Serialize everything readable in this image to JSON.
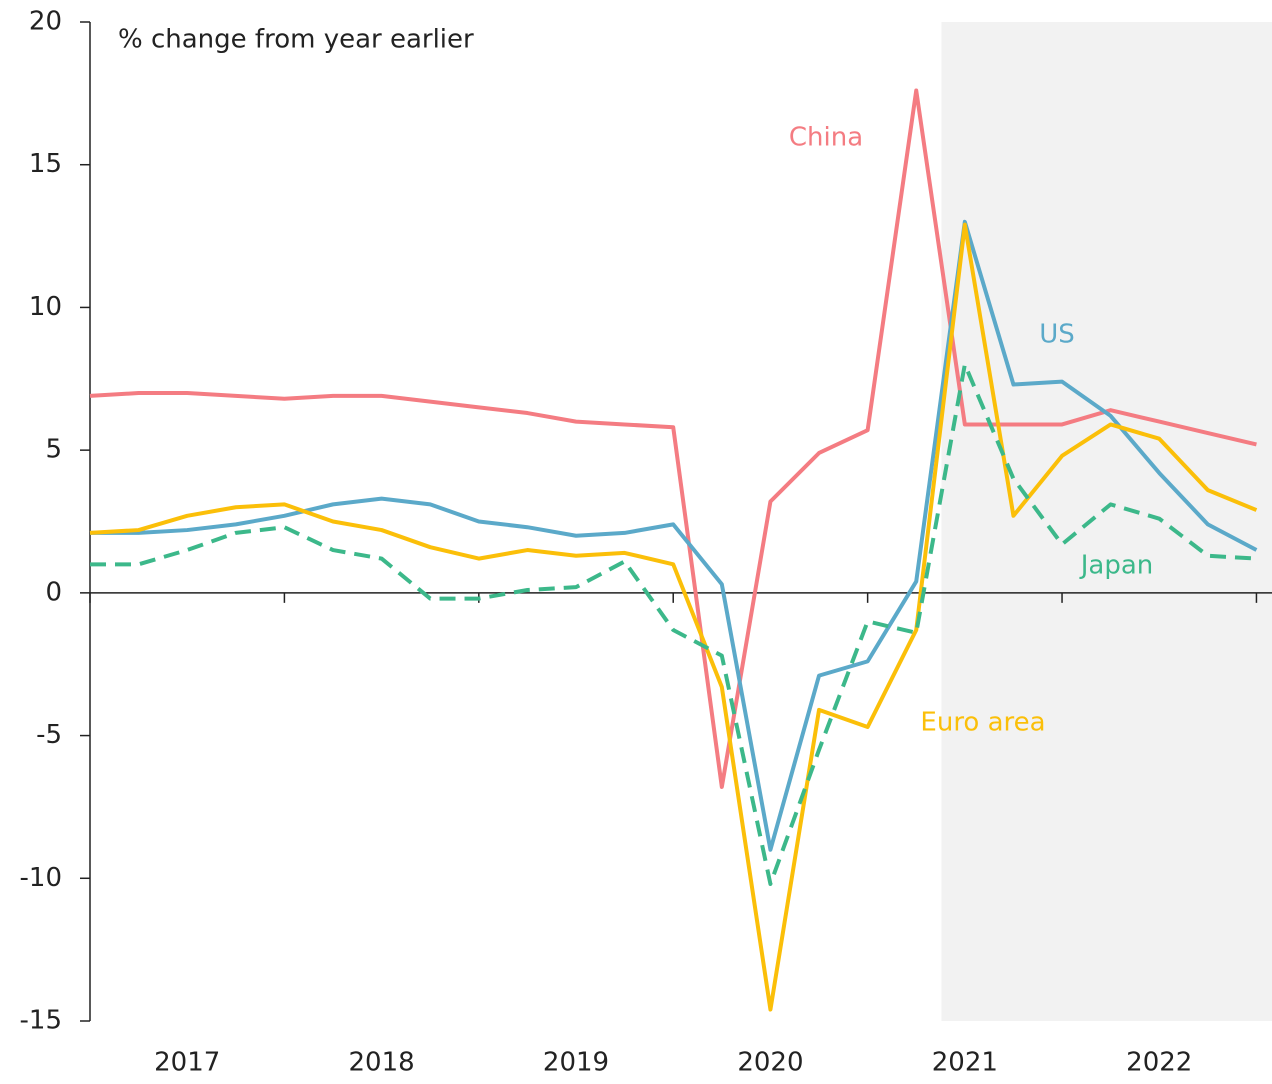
{
  "chart_data": {
    "type": "line",
    "annotation": "% change from year earlier",
    "x": [
      2017,
      2017.25,
      2017.5,
      2017.75,
      2018,
      2018.25,
      2018.5,
      2018.75,
      2019,
      2019.25,
      2019.5,
      2019.75,
      2020,
      2020.25,
      2020.5,
      2020.75,
      2021,
      2021.25,
      2021.5,
      2021.75,
      2022,
      2022.25,
      2022.5,
      2022.75,
      2023
    ],
    "xlim": [
      2017,
      2023.08
    ],
    "xticks": [
      2017,
      2018,
      2019,
      2020,
      2021,
      2022,
      2023
    ],
    "year_labels": [
      {
        "value": 2017.5,
        "label": "2017"
      },
      {
        "value": 2018.5,
        "label": "2018"
      },
      {
        "value": 2019.5,
        "label": "2019"
      },
      {
        "value": 2020.5,
        "label": "2020"
      },
      {
        "value": 2021.5,
        "label": "2021"
      },
      {
        "value": 2022.5,
        "label": "2022"
      }
    ],
    "ylim": [
      -15,
      20
    ],
    "yticks": [
      -15,
      -10,
      -5,
      0,
      5,
      10,
      15,
      20
    ],
    "forecast_shading_start": 2021.38,
    "series": [
      {
        "name": "China",
        "color": "#f47c82",
        "dashed": false,
        "values": [
          6.9,
          7.0,
          7.0,
          6.9,
          6.8,
          6.9,
          6.9,
          6.7,
          6.5,
          6.3,
          6.0,
          5.9,
          5.8,
          -6.8,
          3.2,
          4.9,
          5.7,
          17.6,
          5.9,
          5.9,
          5.9,
          6.4,
          6.0,
          5.6,
          5.2
        ]
      },
      {
        "name": "US",
        "color": "#5ba9c9",
        "dashed": false,
        "values": [
          2.1,
          2.1,
          2.2,
          2.4,
          2.7,
          3.1,
          3.3,
          3.1,
          2.5,
          2.3,
          2.0,
          2.1,
          2.4,
          0.3,
          -9.0,
          -2.9,
          -2.4,
          0.4,
          13.0,
          7.3,
          7.4,
          6.2,
          4.2,
          2.4,
          1.5
        ]
      },
      {
        "name": "Euro area",
        "color": "#fbbf09",
        "dashed": false,
        "values": [
          2.1,
          2.2,
          2.7,
          3.0,
          3.1,
          2.5,
          2.2,
          1.6,
          1.2,
          1.5,
          1.3,
          1.4,
          1.0,
          -3.3,
          -14.6,
          -4.1,
          -4.7,
          -1.3,
          12.9,
          2.7,
          4.8,
          5.9,
          5.4,
          3.6,
          2.9
        ]
      },
      {
        "name": "Japan",
        "color": "#3cb88a",
        "dashed": true,
        "values": [
          1.0,
          1.0,
          1.5,
          2.1,
          2.3,
          1.5,
          1.2,
          -0.2,
          -0.2,
          0.1,
          0.2,
          1.1,
          -1.3,
          -2.2,
          -10.2,
          -5.5,
          -1.0,
          -1.4,
          8.0,
          4.0,
          1.7,
          3.1,
          2.6,
          1.3,
          1.2
        ]
      }
    ]
  }
}
